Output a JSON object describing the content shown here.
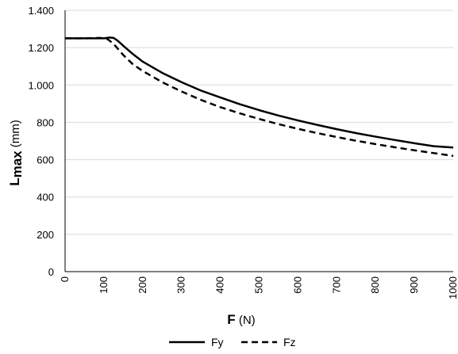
{
  "chart_data": {
    "type": "line",
    "xlabel": {
      "main": "F",
      "unit": " (N)"
    },
    "ylabel": {
      "main": "L",
      "sub": "max",
      "unit": " (mm)"
    },
    "xlim": [
      0,
      1000
    ],
    "ylim": [
      0,
      1400
    ],
    "x_ticks": [
      0,
      100,
      200,
      300,
      400,
      500,
      600,
      700,
      800,
      900,
      1000
    ],
    "x_tick_labels": [
      "0",
      "100",
      "200",
      "300",
      "400",
      "500",
      "600",
      "700",
      "800",
      "900",
      "1000"
    ],
    "y_ticks": [
      0,
      200,
      400,
      600,
      800,
      1000,
      1200,
      1400
    ],
    "y_tick_labels": [
      "0",
      "200",
      "400",
      "600",
      "800",
      "1.000",
      "1.200",
      "1.400"
    ],
    "grid": "horizontal",
    "legend_position": "bottom",
    "series": [
      {
        "name": "Fy",
        "style": "solid",
        "color": "#000000",
        "x": [
          0,
          50,
          100,
          115,
          125,
          135,
          150,
          175,
          200,
          250,
          300,
          350,
          400,
          450,
          500,
          550,
          600,
          650,
          700,
          750,
          800,
          850,
          900,
          950,
          1000
        ],
        "y": [
          1250,
          1250,
          1250,
          1254,
          1252,
          1238,
          1210,
          1165,
          1125,
          1065,
          1015,
          970,
          933,
          897,
          865,
          836,
          810,
          786,
          763,
          742,
          723,
          705,
          688,
          672,
          665
        ]
      },
      {
        "name": "Fz",
        "style": "dashed",
        "color": "#000000",
        "x": [
          0,
          50,
          90,
          100,
          110,
          125,
          150,
          175,
          200,
          250,
          300,
          350,
          400,
          450,
          500,
          550,
          600,
          650,
          700,
          750,
          800,
          850,
          900,
          950,
          1000
        ],
        "y": [
          1250,
          1250,
          1252,
          1250,
          1245,
          1220,
          1160,
          1110,
          1075,
          1015,
          965,
          920,
          881,
          848,
          818,
          790,
          765,
          742,
          721,
          701,
          683,
          666,
          650,
          635,
          620
        ]
      }
    ]
  }
}
